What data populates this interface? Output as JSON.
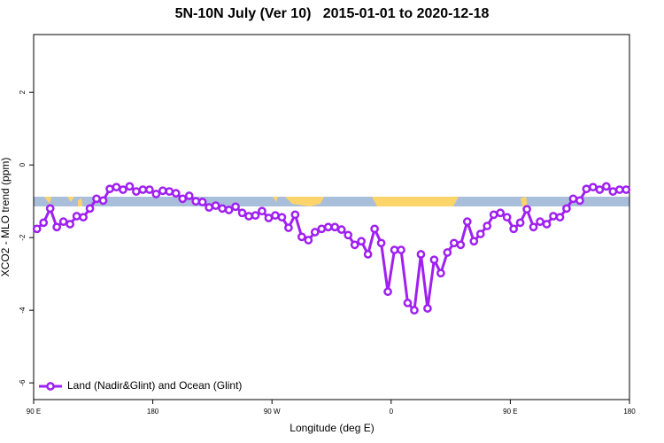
{
  "chart_data": {
    "type": "line",
    "title": "5N-10N July (Ver 10)   2015-01-01 to 2020-12-18",
    "x_label": "Longitude (deg E)",
    "y_label": "XCO2 - MLO trend (ppm)",
    "xlim": [
      90,
      540
    ],
    "ylim": [
      -6.46,
      3.59
    ],
    "xticks": [
      {
        "value": 90,
        "label": "90 E"
      },
      {
        "value": 180,
        "label": "180"
      },
      {
        "value": 270,
        "label": "90 W"
      },
      {
        "value": 360,
        "label": "0"
      },
      {
        "value": 450,
        "label": "90 E"
      },
      {
        "value": 540,
        "label": "180"
      }
    ],
    "yticks": [
      -6,
      -4,
      -2,
      0,
      2
    ],
    "legend": "bottom-left",
    "x": [
      92.5,
      97.5,
      102.5,
      107.5,
      112.5,
      117.5,
      122.5,
      127.5,
      132.5,
      137.5,
      142.5,
      147.5,
      152.5,
      157.5,
      162.5,
      167.5,
      172.5,
      177.5,
      182.5,
      187.5,
      192.5,
      197.5,
      202.5,
      207.5,
      212.5,
      217.5,
      222.5,
      227.5,
      232.5,
      237.5,
      242.5,
      247.5,
      252.5,
      257.5,
      262.5,
      267.5,
      272.5,
      277.5,
      282.5,
      287.5,
      292.5,
      297.5,
      302.5,
      307.5,
      312.5,
      317.5,
      322.5,
      327.5,
      332.5,
      337.5,
      342.5,
      347.5,
      352.5,
      357.5,
      362.5,
      367.5,
      372.5,
      377.5,
      382.5,
      387.5,
      392.5,
      397.5,
      402.5,
      407.5,
      412.5,
      417.5,
      422.5,
      427.5,
      432.5,
      437.5,
      442.5,
      447.5,
      452.5,
      457.5,
      462.5,
      467.5,
      472.5,
      477.5,
      482.5,
      487.5,
      492.5,
      497.5,
      502.5,
      507.5,
      512.5,
      517.5,
      522.5,
      527.5,
      532.5,
      537.5
    ],
    "series": [
      {
        "name": "Land (Nadir&Glint) and Ocean (Glint)",
        "color": "#a020f0",
        "values": [
          -1.76,
          -1.59,
          -1.2,
          -1.71,
          -1.56,
          -1.63,
          -1.41,
          -1.44,
          -1.2,
          -0.93,
          -0.98,
          -0.66,
          -0.61,
          -0.68,
          -0.59,
          -0.73,
          -0.68,
          -0.68,
          -0.8,
          -0.71,
          -0.73,
          -0.78,
          -0.93,
          -0.85,
          -1.0,
          -1.02,
          -1.17,
          -1.12,
          -1.2,
          -1.24,
          -1.15,
          -1.32,
          -1.41,
          -1.39,
          -1.27,
          -1.46,
          -1.39,
          -1.44,
          -1.73,
          -1.37,
          -1.98,
          -2.07,
          -1.85,
          -1.76,
          -1.71,
          -1.71,
          -1.78,
          -1.93,
          -2.2,
          -2.1,
          -2.46,
          -1.76,
          -2.15,
          -3.49,
          -2.34,
          -2.34,
          -3.8,
          -4.0,
          -2.46,
          -3.95,
          -2.61,
          -2.98,
          -2.41,
          -2.15,
          -2.2,
          -1.56,
          -2.1,
          -1.9,
          -1.68,
          -1.37,
          -1.32,
          -1.44,
          -1.76,
          -1.59,
          -1.22,
          -1.71,
          -1.56,
          -1.63,
          -1.41,
          -1.44,
          -1.2,
          -0.93,
          -0.98,
          -0.66,
          -0.61,
          -0.68,
          -0.59,
          -0.73,
          -0.68,
          -0.68
        ]
      }
    ]
  }
}
